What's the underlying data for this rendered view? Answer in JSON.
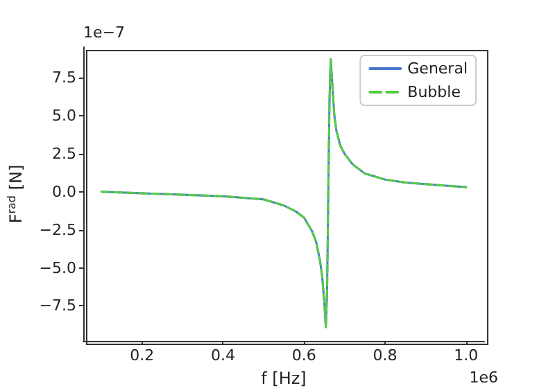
{
  "chart_data": {
    "type": "line",
    "xlabel": "f [Hz]",
    "ylabel": "F$^{rad}$ [N]",
    "x": [
      0.1,
      0.2,
      0.3,
      0.4,
      0.45,
      0.5,
      0.55,
      0.58,
      0.6,
      0.62,
      0.63,
      0.64,
      0.645,
      0.65,
      0.654,
      0.657,
      0.66,
      0.663,
      0.666,
      0.67,
      0.675,
      0.68,
      0.69,
      0.7,
      0.72,
      0.75,
      0.8,
      0.85,
      0.9,
      0.95,
      1.0
    ],
    "series": [
      {
        "name": "General",
        "color": "#4a78d0",
        "line_style": "solid",
        "values": [
          0,
          -0.1,
          -0.2,
          -0.3,
          -0.4,
          -0.5,
          -0.9,
          -1.3,
          -1.7,
          -2.6,
          -3.3,
          -4.6,
          -5.6,
          -7.2,
          -8.9,
          -6.5,
          0,
          6,
          8.7,
          7,
          5,
          4,
          3,
          2.5,
          1.8,
          1.2,
          0.8,
          0.6,
          0.5,
          0.4,
          0.3
        ]
      },
      {
        "name": "Bubble",
        "color": "#55cc44",
        "line_style": "dashed",
        "values": [
          0,
          -0.1,
          -0.2,
          -0.3,
          -0.4,
          -0.5,
          -0.9,
          -1.3,
          -1.7,
          -2.6,
          -3.3,
          -4.6,
          -5.6,
          -7.2,
          -8.9,
          -6.5,
          0,
          6,
          8.7,
          7,
          5,
          4,
          3,
          2.5,
          1.8,
          1.2,
          0.8,
          0.6,
          0.5,
          0.4,
          0.3
        ]
      }
    ],
    "xlim": [
      0.055,
      1.045
    ],
    "xticks": [
      0.2,
      0.4,
      0.6,
      0.8,
      {
        "value": 1.0,
        "label": "1.0"
      }
    ],
    "ylim": [
      -9.8,
      9.5
    ],
    "yticks": [
      {
        "value": -7.5,
        "label": "−7.5"
      },
      {
        "value": -5,
        "label": "−5.0"
      },
      {
        "value": -2.5,
        "label": "−2.5"
      },
      {
        "value": 0,
        "label": "0.0"
      },
      2.5,
      {
        "value": 5,
        "label": "5.0"
      },
      7.5
    ],
    "annotations": [
      "1e−7",
      "1e6"
    ],
    "grid": false,
    "legend": "top right",
    "marker": "none"
  }
}
